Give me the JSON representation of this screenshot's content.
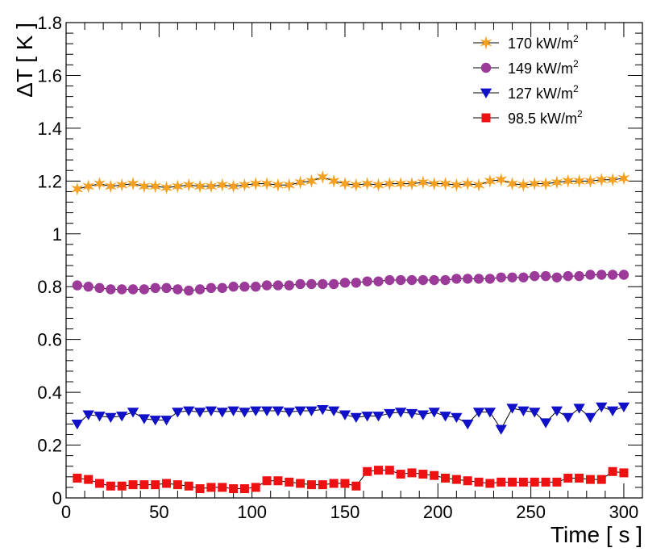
{
  "chart_data": {
    "type": "line",
    "title": "",
    "xlabel": "Time [ s ]",
    "ylabel": "ΔT [ K ]",
    "xlim": [
      0,
      310
    ],
    "ylim": [
      0,
      1.8
    ],
    "xticks": [
      0,
      50,
      100,
      150,
      200,
      250,
      300
    ],
    "yticks": [
      0,
      0.2,
      0.4,
      0.6,
      0.8,
      1,
      1.2,
      1.4,
      1.6,
      1.8
    ],
    "xtick_labels": [
      "0",
      "50",
      "100",
      "150",
      "200",
      "250",
      "300"
    ],
    "ytick_labels": [
      "0",
      "0.2",
      "0.4",
      "0.6",
      "0.8",
      "1",
      "1.2",
      "1.4",
      "1.6",
      "1.8"
    ],
    "legend_position": "top-right",
    "grid": false,
    "x": [
      6,
      12,
      18,
      24,
      30,
      36,
      42,
      48,
      54,
      60,
      66,
      72,
      78,
      84,
      90,
      96,
      102,
      108,
      114,
      120,
      126,
      132,
      138,
      144,
      150,
      156,
      162,
      168,
      174,
      180,
      186,
      192,
      198,
      204,
      210,
      216,
      222,
      228,
      234,
      240,
      246,
      252,
      258,
      264,
      270,
      276,
      282,
      288,
      294,
      300
    ],
    "series": [
      {
        "name_main": "170 kW/m",
        "name_sup": "2",
        "color": "#f5a020",
        "marker": "star",
        "values": [
          1.17,
          1.18,
          1.19,
          1.18,
          1.185,
          1.19,
          1.18,
          1.18,
          1.175,
          1.18,
          1.185,
          1.18,
          1.18,
          1.185,
          1.18,
          1.185,
          1.19,
          1.19,
          1.185,
          1.185,
          1.195,
          1.2,
          1.215,
          1.2,
          1.19,
          1.185,
          1.19,
          1.185,
          1.19,
          1.19,
          1.19,
          1.195,
          1.19,
          1.19,
          1.185,
          1.19,
          1.185,
          1.2,
          1.205,
          1.19,
          1.185,
          1.19,
          1.19,
          1.195,
          1.2,
          1.2,
          1.2,
          1.205,
          1.205,
          1.21
        ]
      },
      {
        "name_main": "149 kW/m",
        "name_sup": "2",
        "color": "#9b3a98",
        "marker": "circle",
        "values": [
          0.805,
          0.8,
          0.795,
          0.79,
          0.79,
          0.79,
          0.79,
          0.795,
          0.795,
          0.79,
          0.785,
          0.79,
          0.795,
          0.795,
          0.8,
          0.8,
          0.8,
          0.805,
          0.805,
          0.805,
          0.81,
          0.81,
          0.81,
          0.81,
          0.815,
          0.815,
          0.82,
          0.82,
          0.825,
          0.825,
          0.825,
          0.825,
          0.825,
          0.825,
          0.83,
          0.83,
          0.83,
          0.83,
          0.835,
          0.835,
          0.835,
          0.84,
          0.84,
          0.835,
          0.84,
          0.84,
          0.845,
          0.845,
          0.845,
          0.845
        ]
      },
      {
        "name_main": "127 kW/m",
        "name_sup": "2",
        "color": "#1010c8",
        "marker": "triangle-down",
        "values": [
          0.28,
          0.315,
          0.31,
          0.305,
          0.31,
          0.325,
          0.3,
          0.295,
          0.295,
          0.325,
          0.33,
          0.325,
          0.33,
          0.325,
          0.33,
          0.325,
          0.33,
          0.33,
          0.33,
          0.325,
          0.33,
          0.33,
          0.335,
          0.33,
          0.315,
          0.305,
          0.31,
          0.31,
          0.32,
          0.325,
          0.32,
          0.315,
          0.325,
          0.31,
          0.305,
          0.28,
          0.325,
          0.325,
          0.26,
          0.34,
          0.33,
          0.325,
          0.285,
          0.33,
          0.305,
          0.34,
          0.305,
          0.345,
          0.33,
          0.345
        ]
      },
      {
        "name_main": "98.5 kW/m",
        "name_sup": "2",
        "color": "#ee1111",
        "marker": "square",
        "values": [
          0.075,
          0.07,
          0.055,
          0.045,
          0.045,
          0.05,
          0.05,
          0.05,
          0.055,
          0.05,
          0.045,
          0.035,
          0.04,
          0.04,
          0.035,
          0.035,
          0.04,
          0.065,
          0.065,
          0.06,
          0.055,
          0.05,
          0.05,
          0.055,
          0.055,
          0.045,
          0.1,
          0.105,
          0.105,
          0.09,
          0.095,
          0.09,
          0.085,
          0.075,
          0.07,
          0.065,
          0.06,
          0.055,
          0.06,
          0.06,
          0.06,
          0.06,
          0.06,
          0.06,
          0.075,
          0.075,
          0.07,
          0.07,
          0.1,
          0.095
        ]
      }
    ]
  }
}
